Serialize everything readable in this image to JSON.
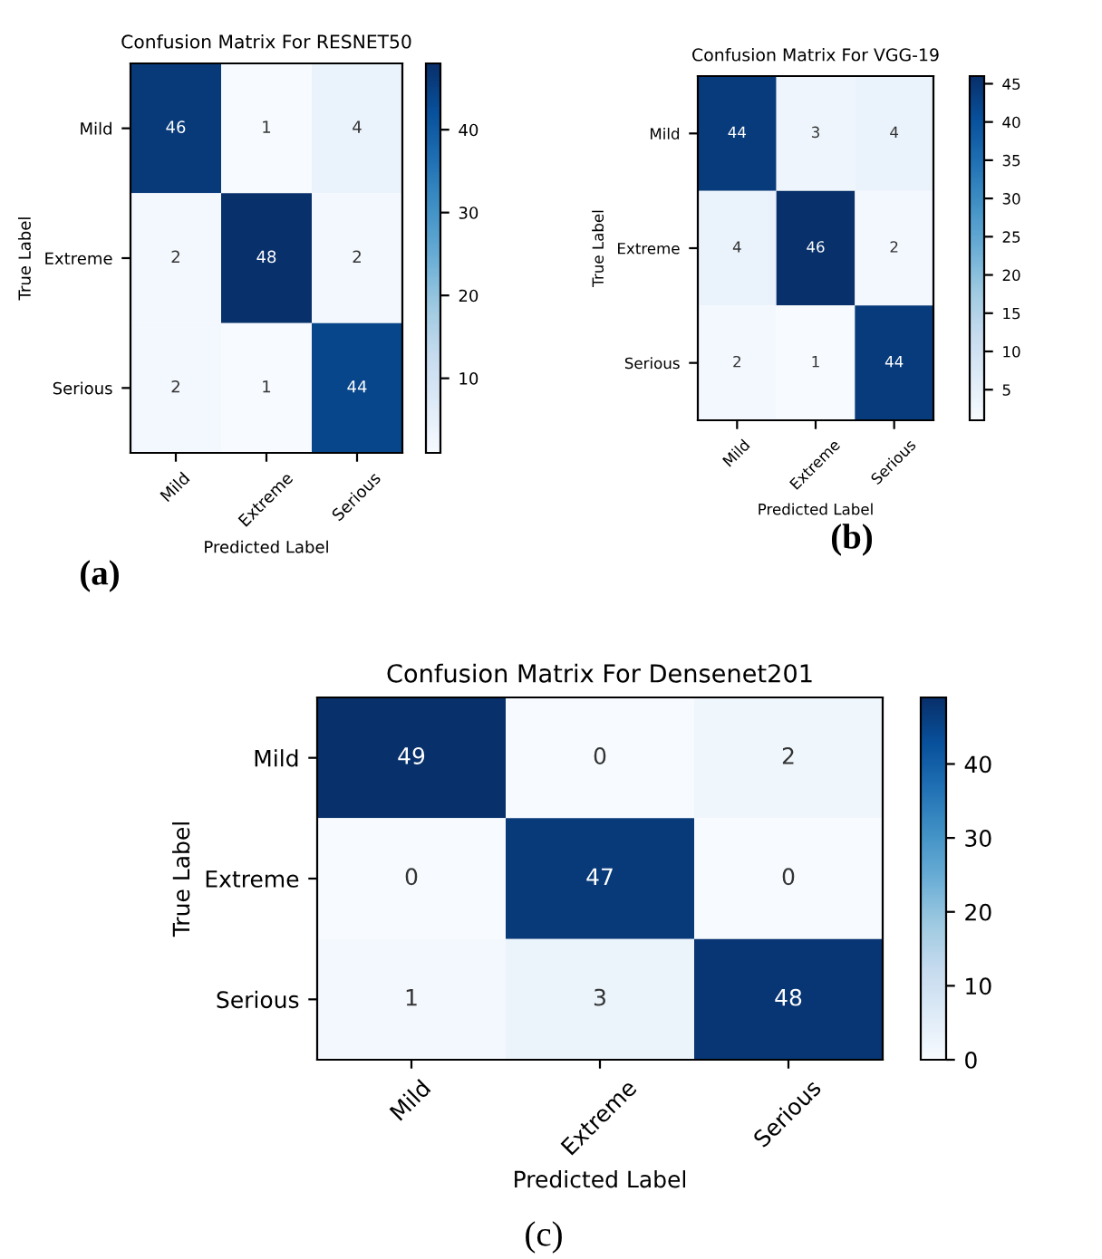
{
  "chart_data": [
    {
      "type": "heatmap",
      "title": "Confusion Matrix For RESNET50",
      "xlabel": "Predicted Label",
      "ylabel": "True Label",
      "categories": [
        "Mild",
        "Extreme",
        "Serious"
      ],
      "y_categories": [
        "Mild",
        "Extreme",
        "Serious"
      ],
      "cells": [
        [
          46,
          1,
          4
        ],
        [
          2,
          48,
          2
        ],
        [
          2,
          1,
          44
        ]
      ],
      "clim": [
        1,
        48
      ],
      "cticks": [
        10,
        20,
        30,
        40
      ],
      "data_labels": true,
      "annotations": [
        "(a)"
      ]
    },
    {
      "type": "heatmap",
      "title": "Confusion Matrix For VGG-19",
      "xlabel": "Predicted Label",
      "ylabel": "True Label",
      "categories": [
        "Mild",
        "Extreme",
        "Serious"
      ],
      "y_categories": [
        "Mild",
        "Extreme",
        "Serious"
      ],
      "cells": [
        [
          44,
          3,
          4
        ],
        [
          4,
          46,
          2
        ],
        [
          2,
          1,
          44
        ]
      ],
      "clim": [
        1,
        46
      ],
      "cticks": [
        5,
        10,
        15,
        20,
        25,
        30,
        35,
        40,
        45
      ],
      "data_labels": true,
      "annotations": [
        "(b)"
      ]
    },
    {
      "type": "heatmap",
      "title": "Confusion Matrix For Densenet201",
      "xlabel": "Predicted Label",
      "ylabel": "True Label",
      "categories": [
        "Mild",
        "Extreme",
        "Serious"
      ],
      "y_categories": [
        "Mild",
        "Extreme",
        "Serious"
      ],
      "cells": [
        [
          49,
          0,
          2
        ],
        [
          0,
          47,
          0
        ],
        [
          1,
          3,
          48
        ]
      ],
      "clim": [
        0,
        49
      ],
      "cticks": [
        0,
        10,
        20,
        30,
        40
      ],
      "data_labels": true,
      "annotations": [
        "(c)"
      ]
    }
  ]
}
